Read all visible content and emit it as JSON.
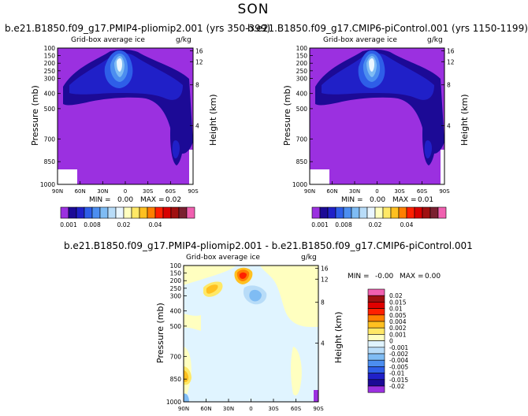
{
  "page": {
    "season": "SON"
  },
  "chart_data": [
    {
      "type": "contour",
      "title": "b.e21.B1850.f09_g17.PMIP4-pliomip2.001 (yrs 350-399)",
      "subtitle": "Grid-box average ice",
      "units": "g/kg",
      "ylabel_left": "Pressure (mb)",
      "ylabel_right": "Height (km)",
      "x_ticks": [
        "90N",
        "60N",
        "30N",
        "0",
        "30S",
        "60S",
        "90S"
      ],
      "y_ticks": [
        "100",
        "150",
        "200",
        "250",
        "300",
        "400",
        "500",
        "700",
        "850",
        "1000"
      ],
      "height_ticks": [
        "16",
        "12",
        "8",
        "4"
      ],
      "xlim": [
        90,
        -90
      ],
      "ylim": [
        1000,
        100
      ],
      "min_label": "MIN =",
      "min_value": "0.00",
      "max_label": "MAX =",
      "max_value": "0.02",
      "colorbar_labels": [
        "0.001",
        "0.008",
        "0.02",
        "0.04"
      ],
      "colorbar_colors": [
        "#9b30e0",
        "#1c0a96",
        "#2020c8",
        "#2e5ee8",
        "#4c8ef0",
        "#7fbcf4",
        "#b8dcf8",
        "#eaf6ff",
        "#ffffc0",
        "#ffe866",
        "#ffc020",
        "#ff7f00",
        "#ff2000",
        "#d80000",
        "#a01010",
        "#7a2030",
        "#f060b0"
      ]
    },
    {
      "type": "contour",
      "title": "b.e21.B1850.f09_g17.CMIP6-piControl.001 (yrs 1150-1199)",
      "subtitle": "Grid-box average ice",
      "units": "g/kg",
      "ylabel_left": "Pressure (mb)",
      "ylabel_right": "Height (km)",
      "x_ticks": [
        "90N",
        "60N",
        "30N",
        "0",
        "30S",
        "60S",
        "90S"
      ],
      "y_ticks": [
        "100",
        "150",
        "200",
        "250",
        "300",
        "400",
        "500",
        "700",
        "850",
        "1000"
      ],
      "height_ticks": [
        "16",
        "12",
        "8",
        "4"
      ],
      "xlim": [
        90,
        -90
      ],
      "ylim": [
        1000,
        100
      ],
      "min_label": "MIN =",
      "min_value": "0.00",
      "max_label": "MAX =",
      "max_value": "0.01",
      "colorbar_labels": [
        "0.001",
        "0.008",
        "0.02",
        "0.04"
      ],
      "colorbar_colors": [
        "#9b30e0",
        "#1c0a96",
        "#2020c8",
        "#2e5ee8",
        "#4c8ef0",
        "#7fbcf4",
        "#b8dcf8",
        "#eaf6ff",
        "#ffffc0",
        "#ffe866",
        "#ffc020",
        "#ff7f00",
        "#ff2000",
        "#d80000",
        "#a01010",
        "#7a2030",
        "#f060b0"
      ]
    },
    {
      "type": "contour",
      "title": "b.e21.B1850.f09_g17.PMIP4-pliomip2.001 - b.e21.B1850.f09_g17.CMIP6-piControl.001",
      "subtitle": "Grid-box average ice",
      "units": "g/kg",
      "ylabel_left": "Pressure (mb)",
      "ylabel_right": "Height (km)",
      "x_ticks": [
        "90N",
        "60N",
        "30N",
        "0",
        "30S",
        "60S",
        "90S"
      ],
      "y_ticks": [
        "100",
        "150",
        "200",
        "250",
        "300",
        "400",
        "500",
        "700",
        "850",
        "1000"
      ],
      "height_ticks": [
        "16",
        "12",
        "8",
        "4"
      ],
      "xlim": [
        90,
        -90
      ],
      "ylim": [
        1000,
        100
      ],
      "min_label": "MIN =",
      "min_value": "-0.00",
      "max_label": "MAX =",
      "max_value": "0.00",
      "colorbar_labels": [
        "0.02",
        "0.015",
        "0.01",
        "0.005",
        "0.004",
        "0.002",
        "0.001",
        "0",
        "-0.001",
        "-0.002",
        "-0.004",
        "-0.005",
        "-0.01",
        "-0.015",
        "-0.02"
      ],
      "colorbar_colors": [
        "#f060b0",
        "#a01010",
        "#e00000",
        "#ff2000",
        "#ff7f00",
        "#ffc020",
        "#ffe866",
        "#ffffc0",
        "#e0f4ff",
        "#b8dcf8",
        "#7fbcf4",
        "#4c8ef0",
        "#2e5ee8",
        "#2020c8",
        "#1c0a96",
        "#9b30e0"
      ]
    }
  ]
}
